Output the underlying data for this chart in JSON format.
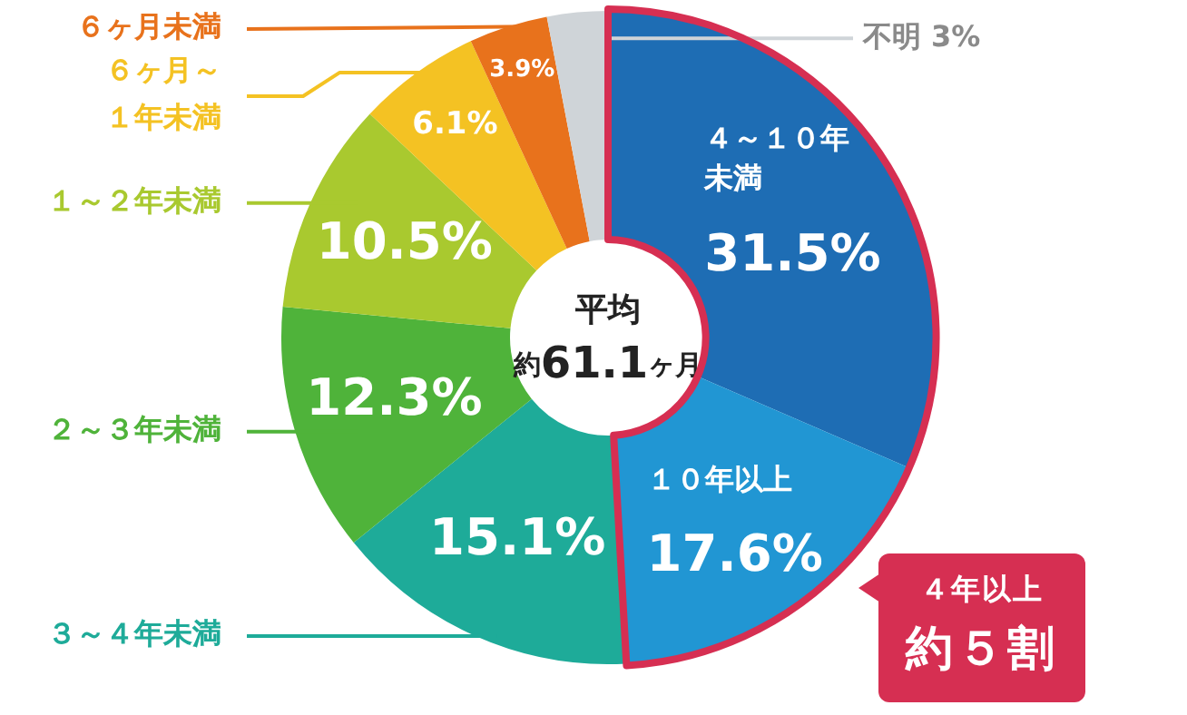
{
  "chart_data": {
    "type": "donut",
    "categories": [
      "４～１０年未満",
      "１０年以上",
      "３～４年未満",
      "２～３年未満",
      "１～２年未満",
      "６ヶ月～１年未満",
      "６ヶ月未満",
      "不明"
    ],
    "values": [
      31.5,
      17.6,
      15.1,
      12.3,
      10.5,
      6.1,
      3.9,
      3
    ],
    "colors": [
      "#1e6db4",
      "#2196d3",
      "#1eab99",
      "#4fb33a",
      "#a9c92f",
      "#f4c223",
      "#e8721c",
      "#cfd4d8"
    ],
    "value_labels": [
      "31.5%",
      "17.6%",
      "15.1%",
      "12.3%",
      "10.5%",
      "6.1%",
      "3.9%",
      "3%"
    ],
    "legend": false,
    "annotations": [
      "平均",
      "約61.1ヶ月",
      "４年以上",
      "約５割"
    ]
  }
}
